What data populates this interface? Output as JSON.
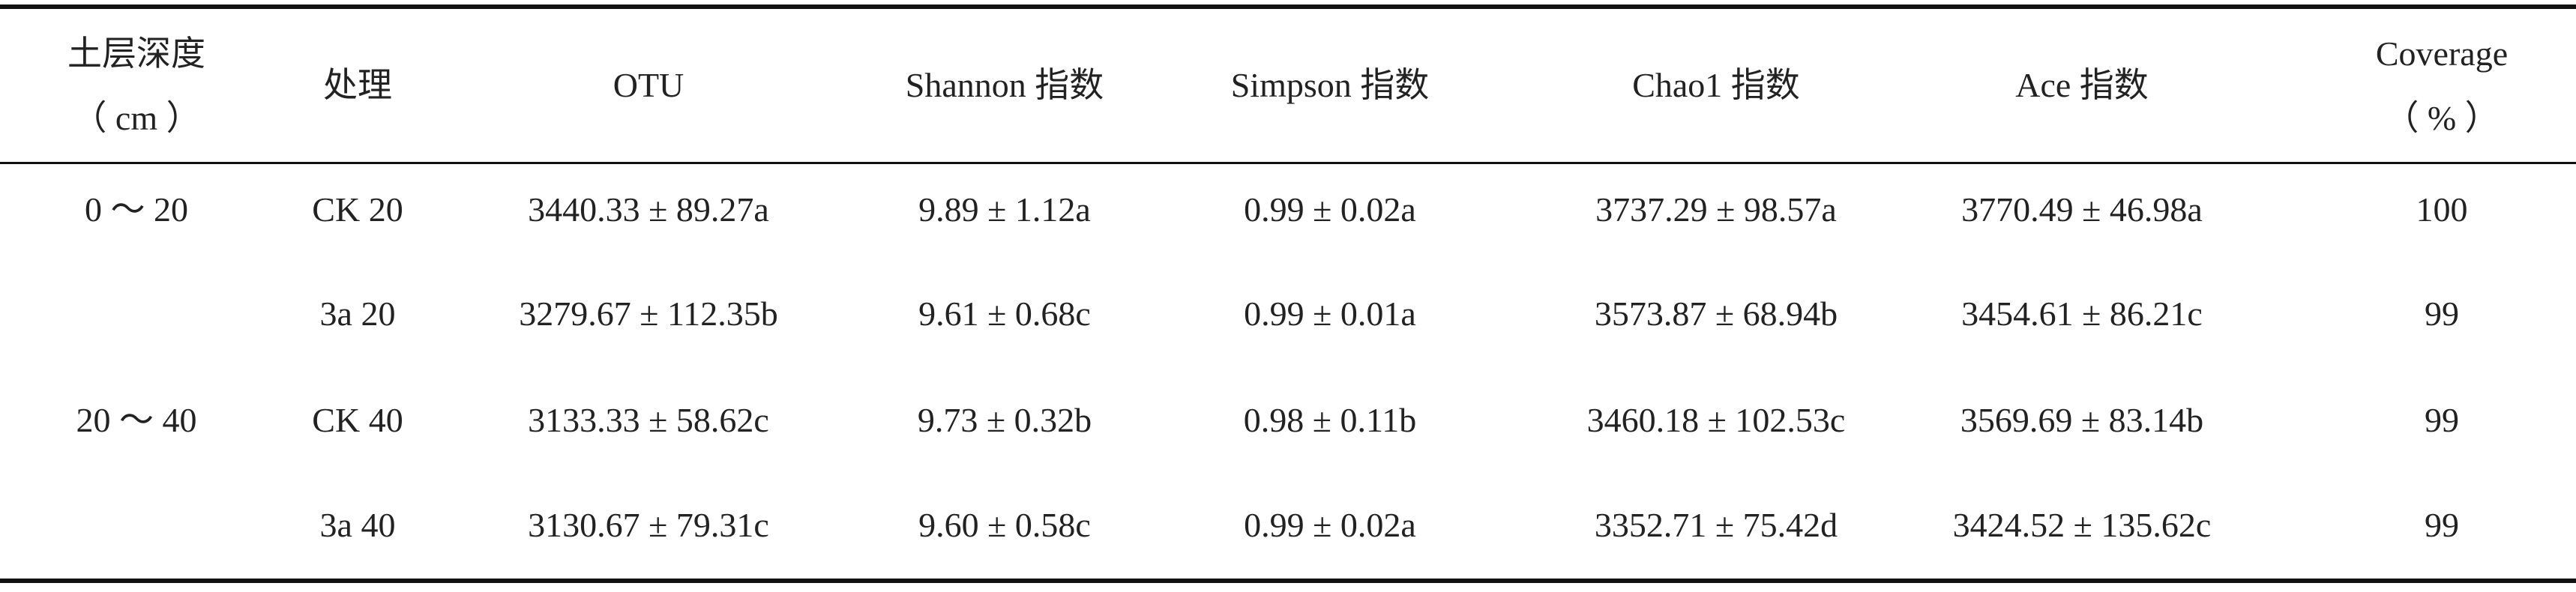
{
  "table": {
    "header": [
      [
        "土层深度",
        "（ cm ）"
      ],
      [
        "处理"
      ],
      [
        "OTU"
      ],
      [
        "Shannon 指数"
      ],
      [
        "Simpson 指数"
      ],
      [
        "Chao1 指数"
      ],
      [
        "Ace 指数"
      ],
      [
        "Coverage",
        "（ % ）"
      ]
    ],
    "rows": [
      [
        "0 ～ 20",
        "CK 20",
        "3440.33 ± 89.27a",
        "9.89 ± 1.12a",
        "0.99 ± 0.02a",
        "3737.29 ± 98.57a",
        "3770.49 ± 46.98a",
        100
      ],
      [
        null,
        "3a 20",
        "3279.67 ± 112.35b",
        "9.61 ± 0.68c",
        "0.99 ± 0.01a",
        "3573.87 ± 68.94b",
        "3454.61 ± 86.21c",
        99
      ],
      [
        "20 ～ 40",
        "CK 40",
        "3133.33 ± 58.62c",
        "9.73 ± 0.32b",
        "0.98 ± 0.11b",
        "3460.18 ± 102.53c",
        "3569.69 ± 83.14b",
        99
      ],
      [
        null,
        "3a 40",
        "3130.67 ± 79.31c",
        "9.60 ± 0.58c",
        "0.99 ± 0.02a",
        "3352.71 ± 75.42d",
        "3424.52 ± 135.62c",
        99
      ]
    ]
  }
}
